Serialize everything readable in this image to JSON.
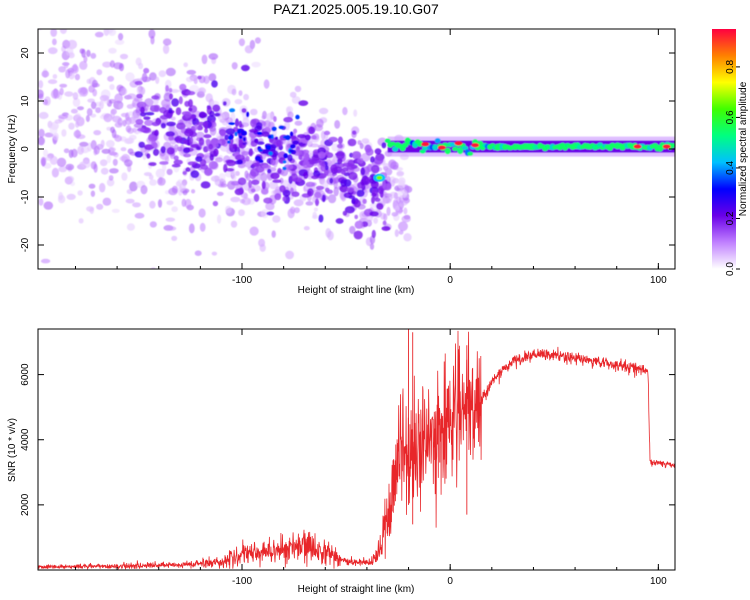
{
  "title": "PAZ1.2025.005.19.10.G07",
  "chart_data": [
    {
      "type": "heatmap",
      "xlabel": "Height of straight line (km)",
      "ylabel": "Frequency (Hz)",
      "xlim": [
        -198,
        108
      ],
      "ylim": [
        -25,
        25
      ],
      "xticks": [
        -100,
        0,
        100
      ],
      "yticks": [
        -20,
        -10,
        0,
        10,
        20
      ],
      "colorbar": {
        "label": "Normalized spectral amplitude",
        "range": [
          0,
          0.95
        ],
        "ticks": [
          0.0,
          0.2,
          0.4,
          0.6,
          0.8
        ],
        "colors": [
          "#ffffff",
          "#c080ff",
          "#6a00e8",
          "#0000ff",
          "#00c0ff",
          "#00ff80",
          "#40ff00",
          "#ffff00",
          "#ff8000",
          "#ff0040"
        ]
      },
      "features": {
        "scatter_region": {
          "x": [
            -198,
            -30
          ],
          "center_freq_start": 10,
          "center_freq_end": -8,
          "spread": 22
        },
        "carrier_line": {
          "x": [
            -30,
            108
          ],
          "freq": 0.5,
          "amplitude_range": [
            0.3,
            0.95
          ]
        }
      }
    },
    {
      "type": "line",
      "xlabel": "Height of straight line (km)",
      "ylabel": "SNR (10 * v/v)",
      "xlim": [
        -198,
        108
      ],
      "ylim": [
        0,
        7400
      ],
      "xticks": [
        -100,
        0,
        100
      ],
      "yticks": [
        2000,
        4000,
        6000
      ],
      "color": "#e8262a",
      "series": [
        {
          "x": [
            -198,
            -160,
            -130,
            -110,
            -100,
            -90,
            -80,
            -70,
            -60,
            -50,
            -40,
            -35,
            -30,
            -25,
            -20,
            -15,
            -10,
            -5,
            0,
            5,
            10,
            15,
            20,
            30,
            40,
            50,
            60,
            70,
            80,
            90,
            95,
            96,
            100,
            108
          ],
          "y": [
            100,
            120,
            150,
            250,
            450,
            550,
            650,
            700,
            600,
            250,
            200,
            350,
            1800,
            3500,
            3600,
            3700,
            3900,
            4200,
            4800,
            5000,
            4700,
            5200,
            5800,
            6400,
            6600,
            6600,
            6500,
            6400,
            6300,
            6200,
            6100,
            3300,
            3300,
            3200
          ]
        }
      ]
    }
  ]
}
